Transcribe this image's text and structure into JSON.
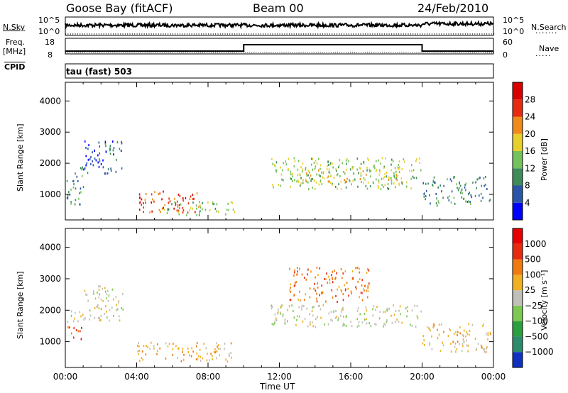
{
  "header": {
    "station": "Goose Bay (fitACF)",
    "beam": "Beam 00",
    "date": "24/Feb/2010"
  },
  "top_panels": {
    "nsky_label": "N.Sky",
    "nsky_ticks": [
      "10^5",
      "10^0"
    ],
    "nsearch_label": "N.Search",
    "freq_label_1": "Freq.",
    "freq_label_2": "[MHz]",
    "freq_ticks": [
      "18",
      "8"
    ],
    "nave_ticks": [
      "60",
      "0"
    ],
    "nave_label": "Nave",
    "cpid_label": "CPID",
    "cpid_value": "tau (fast) 503"
  },
  "chart_data": [
    {
      "type": "heatmap",
      "name": "power",
      "ylabel": "Slant Range [km]",
      "yticks": [
        1000,
        2000,
        3000,
        4000
      ],
      "ylim": [
        180,
        4600
      ],
      "xlim": [
        0,
        24
      ],
      "colorbar_label": "Power [dB]",
      "colorbar_ticks": [
        "4",
        "8",
        "12",
        "16",
        "20",
        "24",
        "28"
      ],
      "colorbar_colors": [
        "#0000ff",
        "#2a55a8",
        "#3d8c5a",
        "#73c25a",
        "#e8d02a",
        "#f08a1a",
        "#e82a10",
        "#d80000"
      ],
      "echo_regions": [
        {
          "x": [
            0.0,
            1.0
          ],
          "y": [
            700,
            1900
          ],
          "level": 2
        },
        {
          "x": [
            1.0,
            3.2
          ],
          "y": [
            1700,
            2800
          ],
          "level": 1
        },
        {
          "x": [
            4.0,
            7.5
          ],
          "y": [
            450,
            1150
          ],
          "level": 6
        },
        {
          "x": [
            5.5,
            9.5
          ],
          "y": [
            350,
            800
          ],
          "level": 3
        },
        {
          "x": [
            11.5,
            20.0
          ],
          "y": [
            1200,
            2200
          ],
          "level": 3
        },
        {
          "x": [
            13.0,
            19.0
          ],
          "y": [
            1400,
            1900
          ],
          "level": 4
        },
        {
          "x": [
            20.0,
            23.8
          ],
          "y": [
            650,
            1600
          ],
          "level": 2
        }
      ]
    },
    {
      "type": "heatmap",
      "name": "velocity",
      "ylabel": "Slant Range [km]",
      "yticks": [
        1000,
        2000,
        3000,
        4000
      ],
      "ylim": [
        180,
        4600
      ],
      "xlim": [
        0,
        24
      ],
      "colorbar_label": "Velocity [m s⁻¹]",
      "colorbar_ticks": [
        "1000",
        "500",
        "100",
        "25",
        "−25",
        "−100",
        "−500",
        "−1000"
      ],
      "colorbar_colors": [
        "#1030c0",
        "#2a8c6a",
        "#2aa040",
        "#7cc850",
        "#c0c0b8",
        "#f0b020",
        "#f07a10",
        "#e82a10",
        "#e80000"
      ],
      "echo_regions": [
        {
          "x": [
            0.0,
            1.0
          ],
          "y": [
            1100,
            1500
          ],
          "level": 7
        },
        {
          "x": [
            0.0,
            1.0
          ],
          "y": [
            1600,
            2000
          ],
          "level": 4
        },
        {
          "x": [
            1.0,
            3.2
          ],
          "y": [
            1700,
            2800
          ],
          "level": 4
        },
        {
          "x": [
            4.0,
            9.5
          ],
          "y": [
            400,
            1000
          ],
          "level": 5
        },
        {
          "x": [
            11.5,
            20.0
          ],
          "y": [
            1500,
            2200
          ],
          "level": 4
        },
        {
          "x": [
            12.5,
            17.0
          ],
          "y": [
            2300,
            3400
          ],
          "level": 6
        },
        {
          "x": [
            20.0,
            23.8
          ],
          "y": [
            700,
            1600
          ],
          "level": 5
        }
      ]
    }
  ],
  "x_axis": {
    "ticks": [
      "00:00",
      "04:00",
      "08:00",
      "12:00",
      "16:00",
      "20:00",
      "00:00"
    ],
    "label": "Time UT"
  }
}
